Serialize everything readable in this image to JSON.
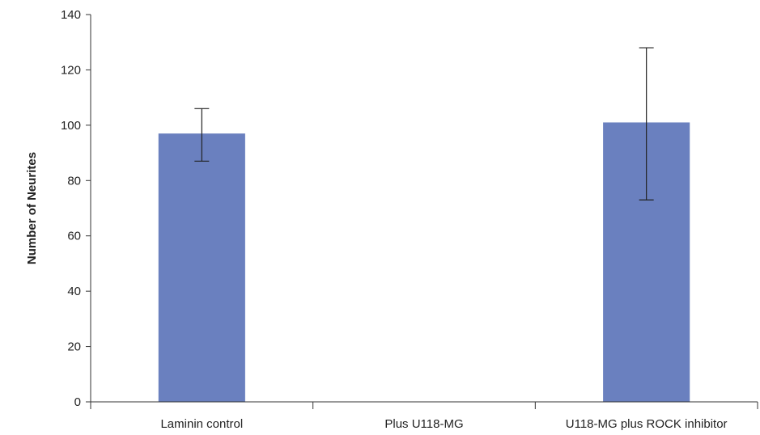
{
  "chart_data": {
    "type": "bar",
    "title": "",
    "xlabel": "",
    "ylabel": "Number of Neurites",
    "categories": [
      "Laminin control",
      "Plus U118-MG",
      "U118-MG plus ROCK inhibitor"
    ],
    "values": [
      97,
      0,
      101
    ],
    "error_low": [
      87,
      null,
      73
    ],
    "error_high": [
      106,
      null,
      128
    ],
    "ylim": [
      0,
      140
    ],
    "yticks": [
      0,
      20,
      40,
      60,
      80,
      100,
      120,
      140
    ],
    "ytick_labels": [
      "0",
      "20",
      "40",
      "60",
      "80",
      "100",
      "120",
      "140"
    ],
    "grid": false,
    "legend": "none",
    "colors": {
      "bar": "#6a80bf",
      "axis": "#333333",
      "error": "#222222"
    }
  }
}
